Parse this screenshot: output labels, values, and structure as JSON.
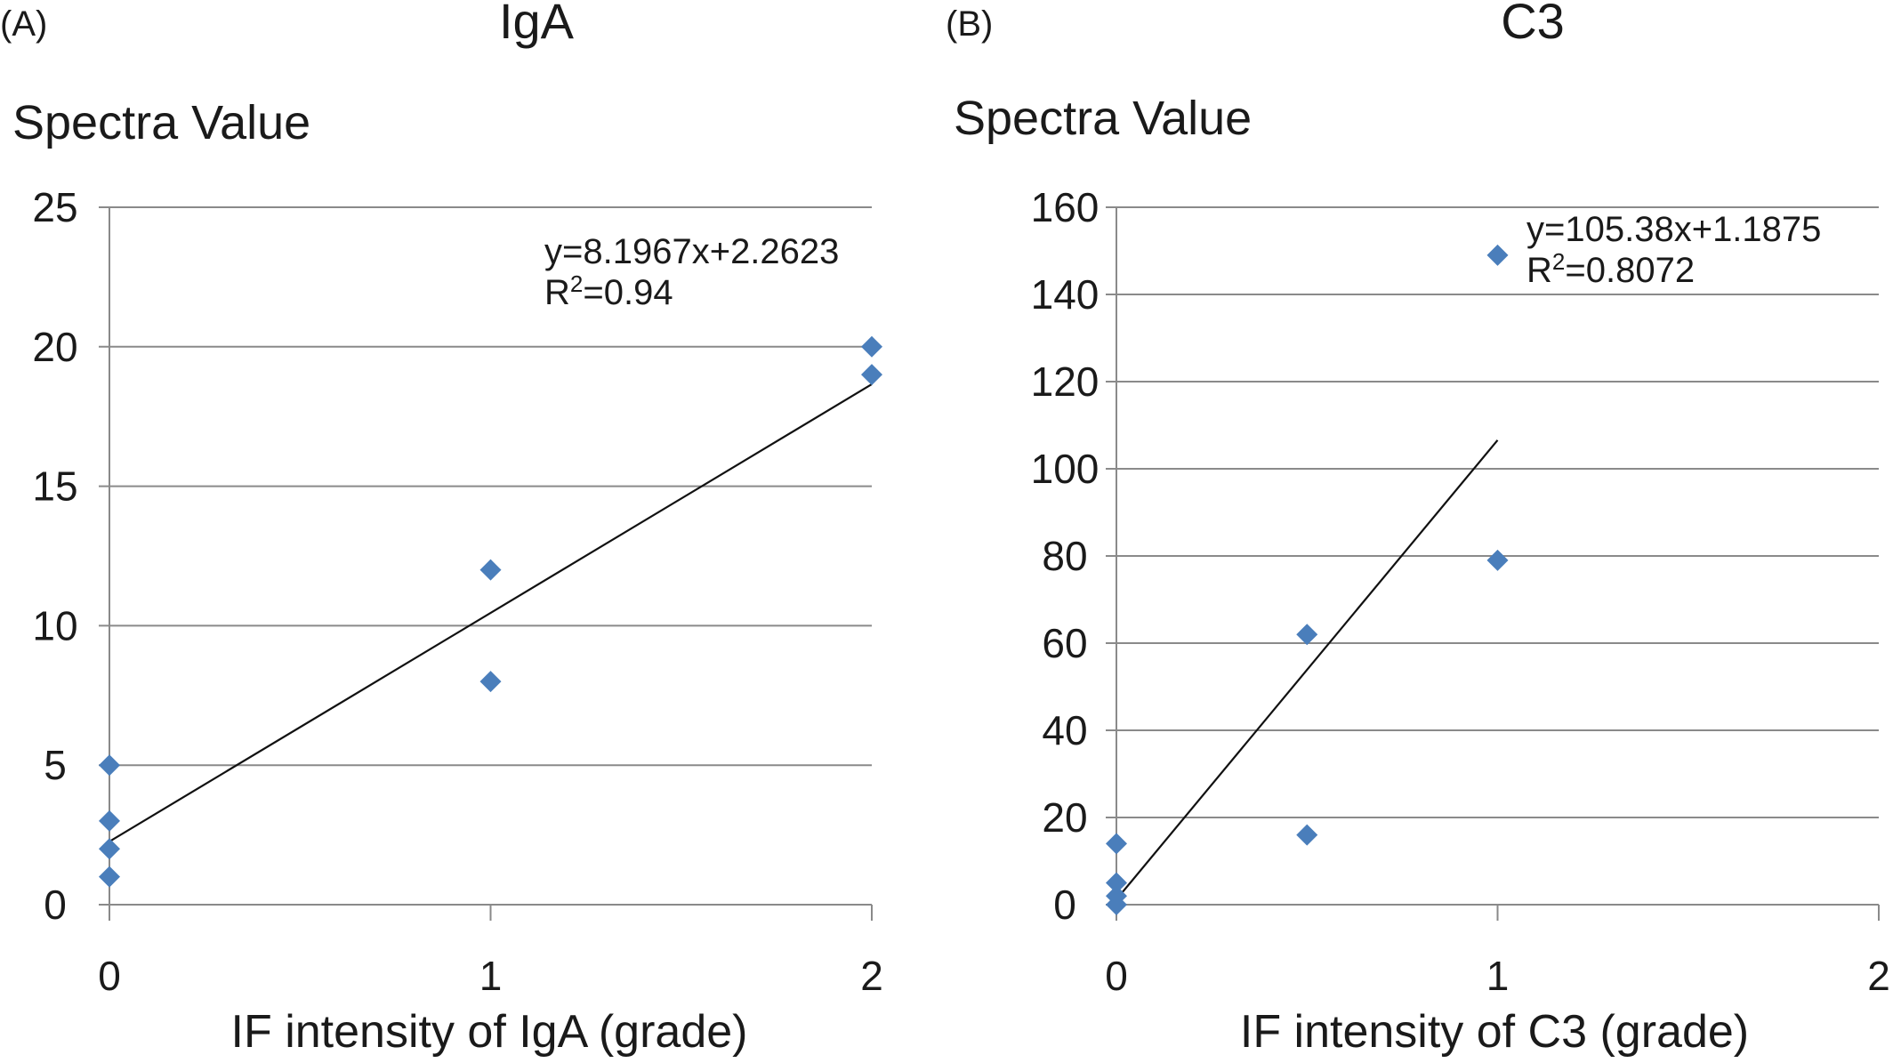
{
  "chart_data": [
    {
      "type": "scatter",
      "panel_label": "(A)",
      "title": "IgA",
      "ylabel": "Spectra Value",
      "xlabel": "IF intensity of IgA (grade)",
      "xlim": [
        0,
        2
      ],
      "ylim": [
        0,
        25
      ],
      "x_ticks": [
        "0",
        "1",
        "2"
      ],
      "y_ticks": [
        "0",
        "5",
        "10",
        "15",
        "20",
        "25"
      ],
      "grid": "horizontal",
      "marker_color": "#4a7ebb",
      "points": [
        {
          "x": 0,
          "y": 5
        },
        {
          "x": 0,
          "y": 3
        },
        {
          "x": 0,
          "y": 2
        },
        {
          "x": 0,
          "y": 1
        },
        {
          "x": 1,
          "y": 12
        },
        {
          "x": 1,
          "y": 8
        },
        {
          "x": 2,
          "y": 20
        },
        {
          "x": 2,
          "y": 19
        }
      ],
      "trendline": {
        "slope": 8.1967,
        "intercept": 2.2623,
        "x_range": [
          0,
          2
        ]
      },
      "equation": "y=8.1967x+2.2623",
      "r2_prefix": "R",
      "r2_sup": "2",
      "r2_value": "=0.94"
    },
    {
      "type": "scatter",
      "panel_label": "(B)",
      "title": "C3",
      "ylabel": "Spectra Value",
      "xlabel": "IF intensity of C3 (grade)",
      "xlim": [
        0,
        2
      ],
      "ylim": [
        0,
        160
      ],
      "x_ticks": [
        "0",
        "1",
        "2"
      ],
      "y_ticks": [
        "0",
        "20",
        "40",
        "60",
        "80",
        "100",
        "120",
        "140",
        "160"
      ],
      "grid": "horizontal",
      "marker_color": "#4a7ebb",
      "points": [
        {
          "x": 0,
          "y": 14
        },
        {
          "x": 0,
          "y": 5
        },
        {
          "x": 0,
          "y": 2
        },
        {
          "x": 0,
          "y": 0
        },
        {
          "x": 0.5,
          "y": 62
        },
        {
          "x": 0.5,
          "y": 16
        },
        {
          "x": 1,
          "y": 149
        },
        {
          "x": 1,
          "y": 79
        }
      ],
      "trendline": {
        "slope": 105.38,
        "intercept": 1.1875,
        "x_range": [
          0,
          1
        ]
      },
      "equation": "y=105.38x+1.1875",
      "r2_prefix": "R",
      "r2_sup": "2",
      "r2_value": "=0.8072"
    }
  ]
}
